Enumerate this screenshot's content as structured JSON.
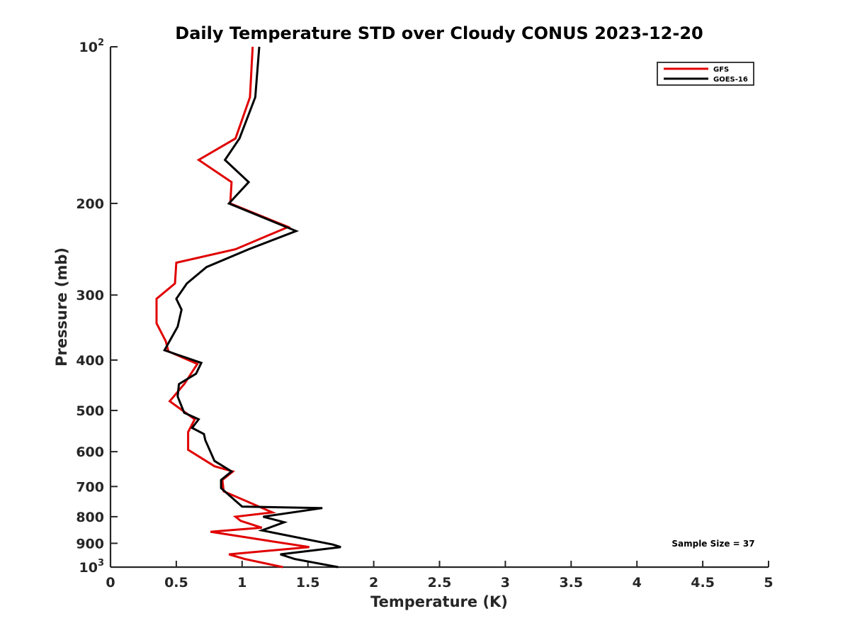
{
  "chart_data": {
    "type": "line",
    "title": "Daily Temperature STD over Cloudy CONUS 2023-12-20",
    "xlabel": "Temperature (K)",
    "ylabel": "Pressure (mb)",
    "xlim": [
      0,
      5
    ],
    "ylim": [
      100,
      1000
    ],
    "yscale": "log",
    "y_reversed": true,
    "x_ticks": [
      0,
      0.5,
      1,
      1.5,
      2,
      2.5,
      3,
      3.5,
      4,
      4.5,
      5
    ],
    "x_tick_labels": [
      "0",
      "0.5",
      "1",
      "1.5",
      "2",
      "2.5",
      "3",
      "3.5",
      "4",
      "4.5",
      "5"
    ],
    "y_ticks": [
      100,
      200,
      300,
      400,
      500,
      600,
      700,
      800,
      900,
      1000
    ],
    "y_tick_labels": [
      {
        "base": "10",
        "sup": "2"
      },
      {
        "base": "200",
        "sup": ""
      },
      {
        "base": "300",
        "sup": ""
      },
      {
        "base": "400",
        "sup": ""
      },
      {
        "base": "500",
        "sup": ""
      },
      {
        "base": "600",
        "sup": ""
      },
      {
        "base": "700",
        "sup": ""
      },
      {
        "base": "800",
        "sup": ""
      },
      {
        "base": "900",
        "sup": ""
      },
      {
        "base": "10",
        "sup": "3"
      }
    ],
    "legend_position": "top-right",
    "grid": false,
    "annotation": "Sample Size = 37",
    "series": [
      {
        "name": "GFS",
        "color": "#e00000",
        "points": [
          [
            1.08,
            100
          ],
          [
            1.06,
            125
          ],
          [
            0.95,
            150
          ],
          [
            0.67,
            165
          ],
          [
            0.92,
            182
          ],
          [
            0.91,
            200
          ],
          [
            1.35,
            222
          ],
          [
            0.95,
            245
          ],
          [
            0.5,
            260
          ],
          [
            0.49,
            285
          ],
          [
            0.35,
            305
          ],
          [
            0.35,
            340
          ],
          [
            0.42,
            368
          ],
          [
            0.44,
            385
          ],
          [
            0.66,
            407
          ],
          [
            0.56,
            445
          ],
          [
            0.45,
            480
          ],
          [
            0.64,
            520
          ],
          [
            0.59,
            550
          ],
          [
            0.59,
            595
          ],
          [
            0.79,
            640
          ],
          [
            0.93,
            655
          ],
          [
            0.85,
            680
          ],
          [
            0.86,
            715
          ],
          [
            1.23,
            785
          ],
          [
            0.95,
            800
          ],
          [
            0.99,
            815
          ],
          [
            1.15,
            840
          ],
          [
            0.76,
            855
          ],
          [
            1.2,
            890
          ],
          [
            1.51,
            915
          ],
          [
            0.9,
            945
          ],
          [
            1.02,
            965
          ],
          [
            1.31,
            1000
          ]
        ]
      },
      {
        "name": "GOES-16",
        "color": "#000000",
        "points": [
          [
            1.13,
            100
          ],
          [
            1.1,
            125
          ],
          [
            0.98,
            150
          ],
          [
            0.87,
            165
          ],
          [
            1.05,
            182
          ],
          [
            0.9,
            200
          ],
          [
            1.41,
            226
          ],
          [
            1.05,
            245
          ],
          [
            0.73,
            265
          ],
          [
            0.58,
            285
          ],
          [
            0.5,
            305
          ],
          [
            0.54,
            320
          ],
          [
            0.51,
            345
          ],
          [
            0.41,
            383
          ],
          [
            0.69,
            405
          ],
          [
            0.65,
            425
          ],
          [
            0.52,
            445
          ],
          [
            0.51,
            470
          ],
          [
            0.56,
            505
          ],
          [
            0.67,
            520
          ],
          [
            0.62,
            540
          ],
          [
            0.71,
            555
          ],
          [
            0.72,
            570
          ],
          [
            0.79,
            625
          ],
          [
            0.92,
            655
          ],
          [
            0.84,
            680
          ],
          [
            0.84,
            705
          ],
          [
            1.0,
            765
          ],
          [
            1.61,
            770
          ],
          [
            1.16,
            800
          ],
          [
            1.32,
            820
          ],
          [
            1.15,
            850
          ],
          [
            1.69,
            905
          ],
          [
            1.75,
            915
          ],
          [
            1.29,
            945
          ],
          [
            1.4,
            965
          ],
          [
            1.73,
            1000
          ]
        ]
      }
    ]
  }
}
